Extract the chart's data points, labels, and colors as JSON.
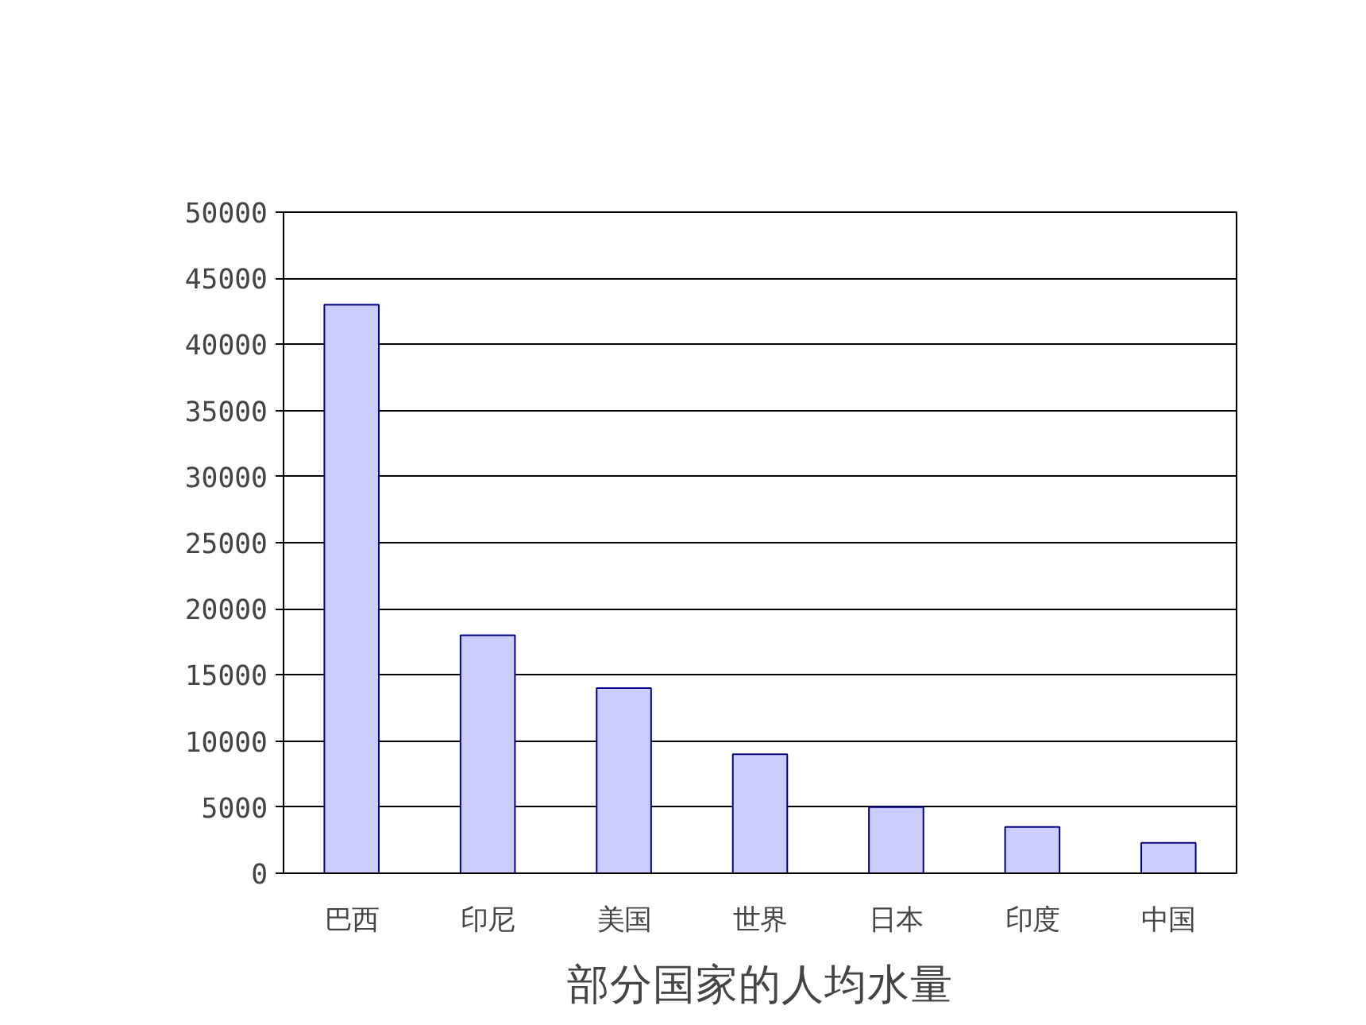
{
  "chart_data": {
    "type": "bar",
    "title": "部分国家的人均水量",
    "categories": [
      "巴西",
      "印尼",
      "美国",
      "世界",
      "日本",
      "印度",
      "中国"
    ],
    "values": [
      43000,
      18000,
      14000,
      9000,
      5000,
      3500,
      2300
    ],
    "color": "#ccccff",
    "ylim": [
      0,
      50000
    ],
    "yticks": [
      0,
      5000,
      10000,
      15000,
      20000,
      25000,
      30000,
      35000,
      40000,
      45000,
      50000
    ],
    "grid": "y"
  }
}
